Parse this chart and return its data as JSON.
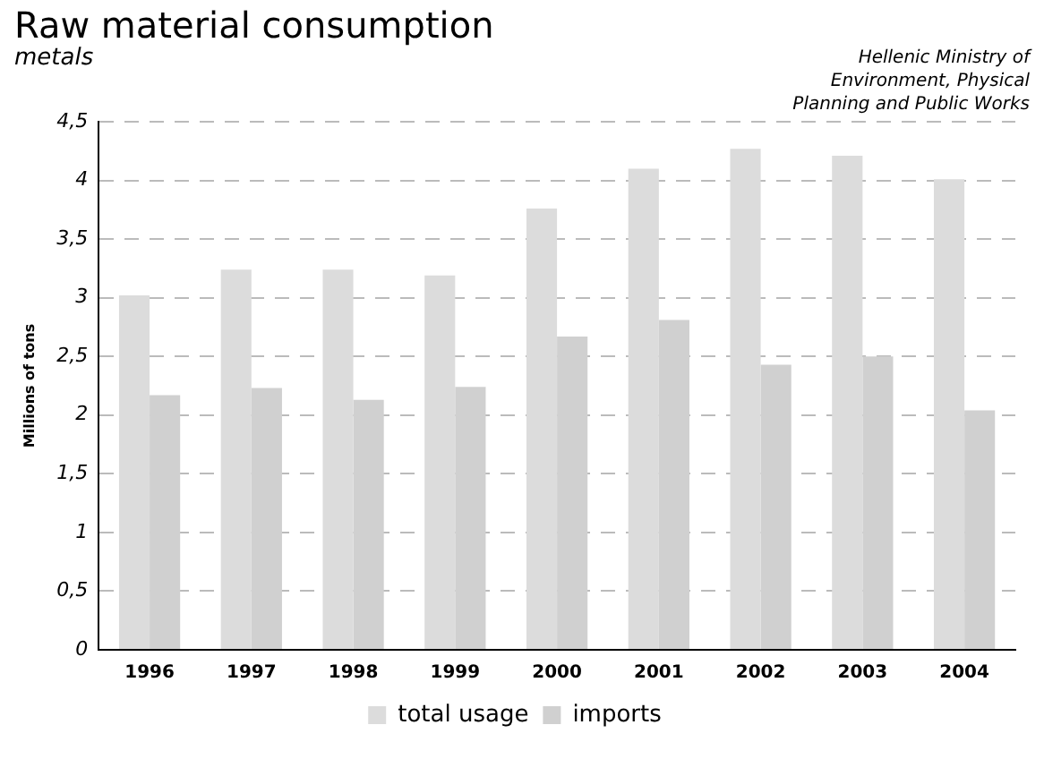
{
  "chart_data": {
    "type": "bar",
    "title": "Raw material consumption",
    "subtitle": "metals",
    "ylabel": "Millions of tons",
    "annotations": [
      "Hellenic Ministry of Environment, Physical Planning and Public Works"
    ],
    "categories": [
      "1996",
      "1997",
      "1998",
      "1999",
      "2000",
      "2001",
      "2002",
      "2003",
      "2004"
    ],
    "series": [
      {
        "name": "total usage",
        "color": "#dcdcdc",
        "values": [
          3.02,
          3.24,
          3.24,
          3.19,
          3.76,
          4.1,
          4.27,
          4.21,
          4.01
        ]
      },
      {
        "name": "imports",
        "color": "#d0d0d0",
        "values": [
          2.17,
          2.23,
          2.13,
          2.24,
          2.67,
          2.81,
          2.43,
          2.5,
          2.04
        ]
      }
    ],
    "ylim": [
      0,
      4.5
    ],
    "yticks": [
      0,
      {
        "value": 0.5,
        "label": "0,5"
      },
      1,
      {
        "value": 1.5,
        "label": "1,5"
      },
      2,
      {
        "value": 2.5,
        "label": "2,5"
      },
      3,
      {
        "value": 3.5,
        "label": "3,5"
      },
      4,
      {
        "value": 4.5,
        "label": "4,5"
      }
    ],
    "grid": "y",
    "legend": "bottom"
  }
}
